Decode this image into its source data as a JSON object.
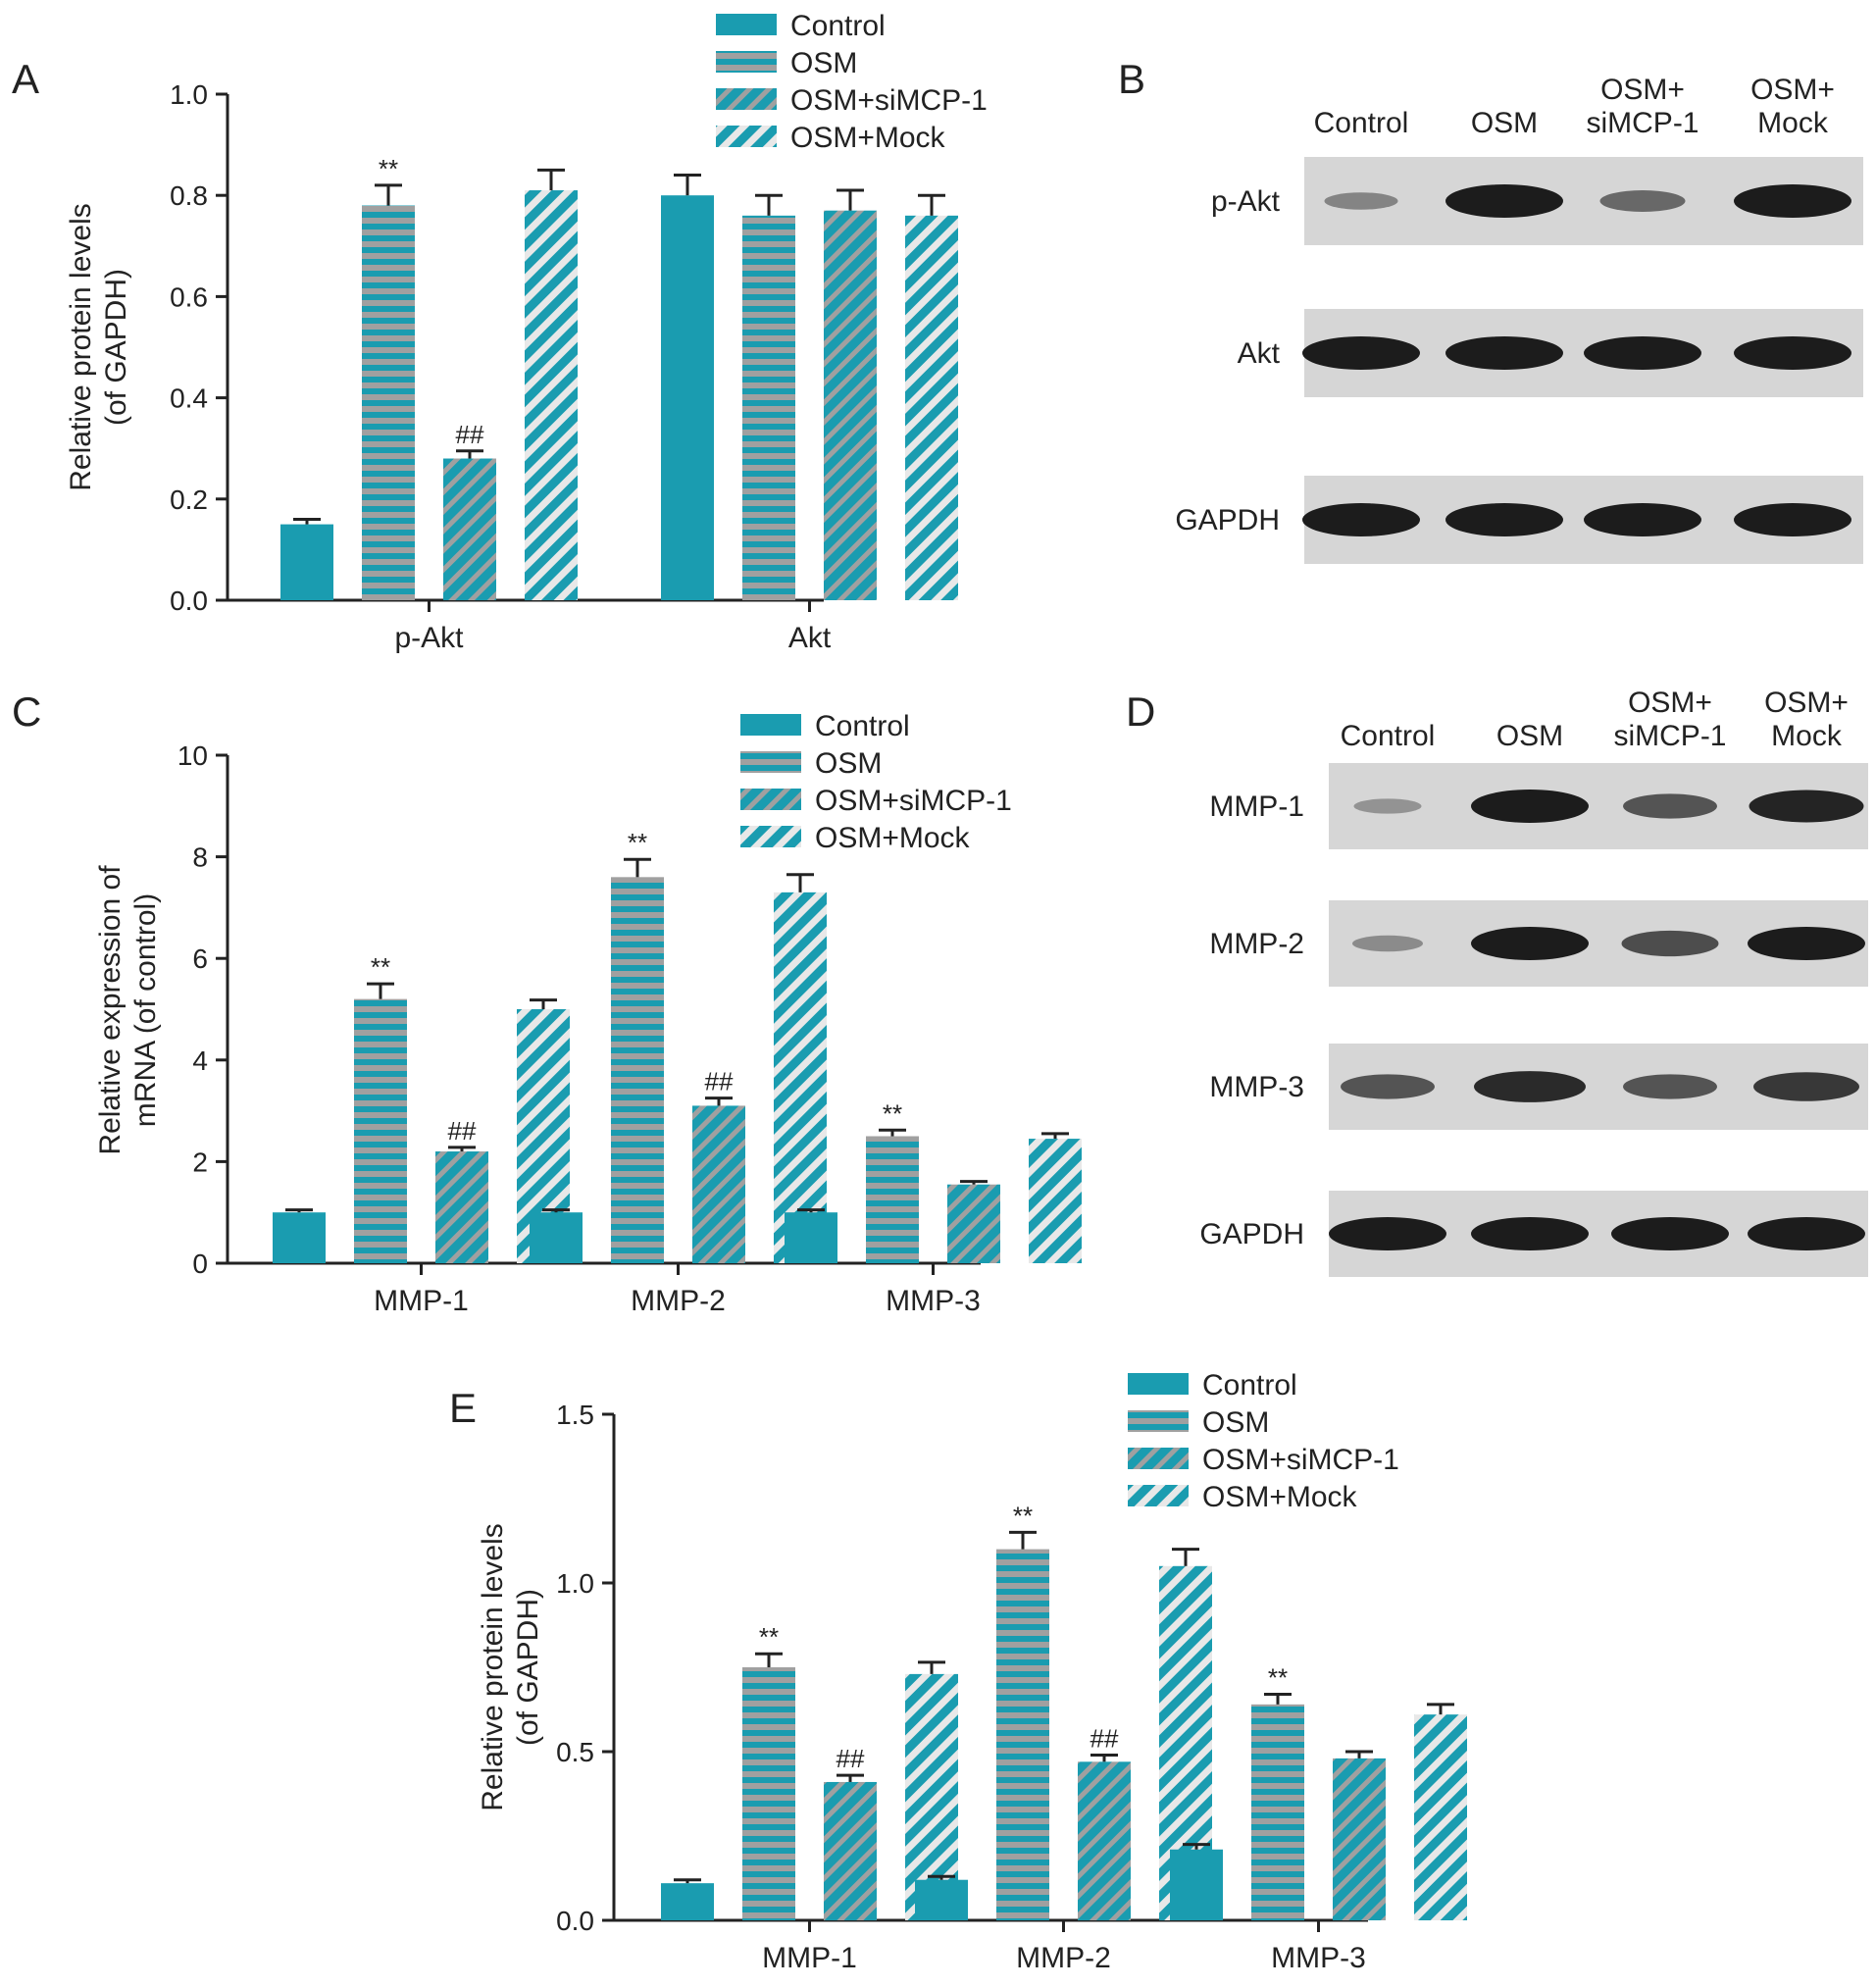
{
  "colors": {
    "control": "#1a9cb0",
    "osm": "#1a9cb0",
    "stripe": "#a0a0a0",
    "stripe_bg": "#1a9cb0",
    "axis": "#222222",
    "blot_bg": "#d6d6d6",
    "band": "#1c1c1c"
  },
  "legend_patterns": [
    "solid",
    "hstripe",
    "diag",
    "diag-light"
  ],
  "chart_data": [
    {
      "panel": "A",
      "type": "bar",
      "ylabel": [
        "Relative protein levels",
        "(of GAPDH)"
      ],
      "ylim": [
        0,
        1.0
      ],
      "ytick_labels": [
        "0.0",
        "0.2",
        "0.4",
        "0.6",
        "0.8",
        "1.0"
      ],
      "ytick_values": [
        0,
        0.2,
        0.4,
        0.6,
        0.8,
        1.0
      ],
      "categories": [
        "p-Akt",
        "Akt"
      ],
      "series": [
        {
          "name": "Control",
          "values": [
            0.15,
            0.8
          ],
          "errors": [
            0.01,
            0.04
          ],
          "annotations": [
            "",
            ""
          ]
        },
        {
          "name": "OSM",
          "values": [
            0.78,
            0.76
          ],
          "errors": [
            0.04,
            0.04
          ],
          "annotations": [
            "**",
            ""
          ]
        },
        {
          "name": "OSM+siMCP-1",
          "values": [
            0.28,
            0.77
          ],
          "errors": [
            0.015,
            0.04
          ],
          "annotations": [
            "##",
            ""
          ]
        },
        {
          "name": "OSM+Mock",
          "values": [
            0.81,
            0.76
          ],
          "errors": [
            0.04,
            0.04
          ],
          "annotations": [
            "",
            ""
          ]
        }
      ]
    },
    {
      "panel": "C",
      "type": "bar",
      "ylabel": [
        "Relative expression of",
        "mRNA (of control)"
      ],
      "ylim": [
        0,
        10
      ],
      "ytick_labels": [
        "0",
        "2",
        "4",
        "6",
        "8",
        "10"
      ],
      "ytick_values": [
        0,
        2,
        4,
        6,
        8,
        10
      ],
      "categories": [
        "MMP-1",
        "MMP-2",
        "MMP-3"
      ],
      "series": [
        {
          "name": "Control",
          "values": [
            1.0,
            1.0,
            1.0
          ],
          "errors": [
            0.05,
            0.05,
            0.05
          ],
          "annotations": [
            "",
            "",
            ""
          ]
        },
        {
          "name": "OSM",
          "values": [
            5.2,
            7.6,
            2.5
          ],
          "errors": [
            0.3,
            0.35,
            0.12
          ],
          "annotations": [
            "**",
            "**",
            "**"
          ]
        },
        {
          "name": "OSM+siMCP-1",
          "values": [
            2.2,
            3.1,
            1.55
          ],
          "errors": [
            0.08,
            0.15,
            0.06
          ],
          "annotations": [
            "##",
            "##",
            ""
          ]
        },
        {
          "name": "OSM+Mock",
          "values": [
            5.0,
            7.3,
            2.45
          ],
          "errors": [
            0.18,
            0.35,
            0.1
          ],
          "annotations": [
            "",
            "",
            ""
          ]
        }
      ]
    },
    {
      "panel": "E",
      "type": "bar",
      "ylabel": [
        "Relative protein levels",
        "(of GAPDH)"
      ],
      "ylim": [
        0,
        1.5
      ],
      "ytick_labels": [
        "0.0",
        "0.5",
        "1.0",
        "1.5"
      ],
      "ytick_values": [
        0,
        0.5,
        1.0,
        1.5
      ],
      "categories": [
        "MMP-1",
        "MMP-2",
        "MMP-3"
      ],
      "series": [
        {
          "name": "Control",
          "values": [
            0.11,
            0.12,
            0.21
          ],
          "errors": [
            0.01,
            0.01,
            0.015
          ],
          "annotations": [
            "",
            "",
            ""
          ]
        },
        {
          "name": "OSM",
          "values": [
            0.75,
            1.1,
            0.64
          ],
          "errors": [
            0.04,
            0.05,
            0.03
          ],
          "annotations": [
            "**",
            "**",
            "**"
          ]
        },
        {
          "name": "OSM+siMCP-1",
          "values": [
            0.41,
            0.47,
            0.48
          ],
          "errors": [
            0.02,
            0.02,
            0.02
          ],
          "annotations": [
            "##",
            "##",
            ""
          ]
        },
        {
          "name": "OSM+Mock",
          "values": [
            0.73,
            1.05,
            0.61
          ],
          "errors": [
            0.035,
            0.05,
            0.03
          ],
          "annotations": [
            "",
            "",
            ""
          ]
        }
      ]
    }
  ],
  "blots": {
    "B": {
      "lanes": [
        "Control",
        "OSM",
        [
          "OSM+",
          "siMCP-1"
        ],
        [
          "OSM+",
          "Mock"
        ]
      ],
      "rows": [
        {
          "label": "p-Akt",
          "intensity": [
            0.25,
            1.0,
            0.45,
            1.0
          ]
        },
        {
          "label": "Akt",
          "intensity": [
            1.0,
            1.0,
            1.0,
            1.0
          ]
        },
        {
          "label": "GAPDH",
          "intensity": [
            1.0,
            1.0,
            1.0,
            1.0
          ]
        }
      ]
    },
    "D": {
      "lanes": [
        "Control",
        "OSM",
        [
          "OSM+",
          "siMCP-1"
        ],
        [
          "OSM+",
          "Mock"
        ]
      ],
      "rows": [
        {
          "label": "MMP-1",
          "intensity": [
            0.15,
            1.0,
            0.6,
            0.95
          ]
        },
        {
          "label": "MMP-2",
          "intensity": [
            0.2,
            1.0,
            0.65,
            1.0
          ]
        },
        {
          "label": "MMP-3",
          "intensity": [
            0.6,
            0.9,
            0.6,
            0.8
          ]
        },
        {
          "label": "GAPDH",
          "intensity": [
            1.0,
            1.0,
            1.0,
            1.0
          ]
        }
      ]
    }
  },
  "panel_letters": {
    "A": "A",
    "B": "B",
    "C": "C",
    "D": "D",
    "E": "E"
  }
}
